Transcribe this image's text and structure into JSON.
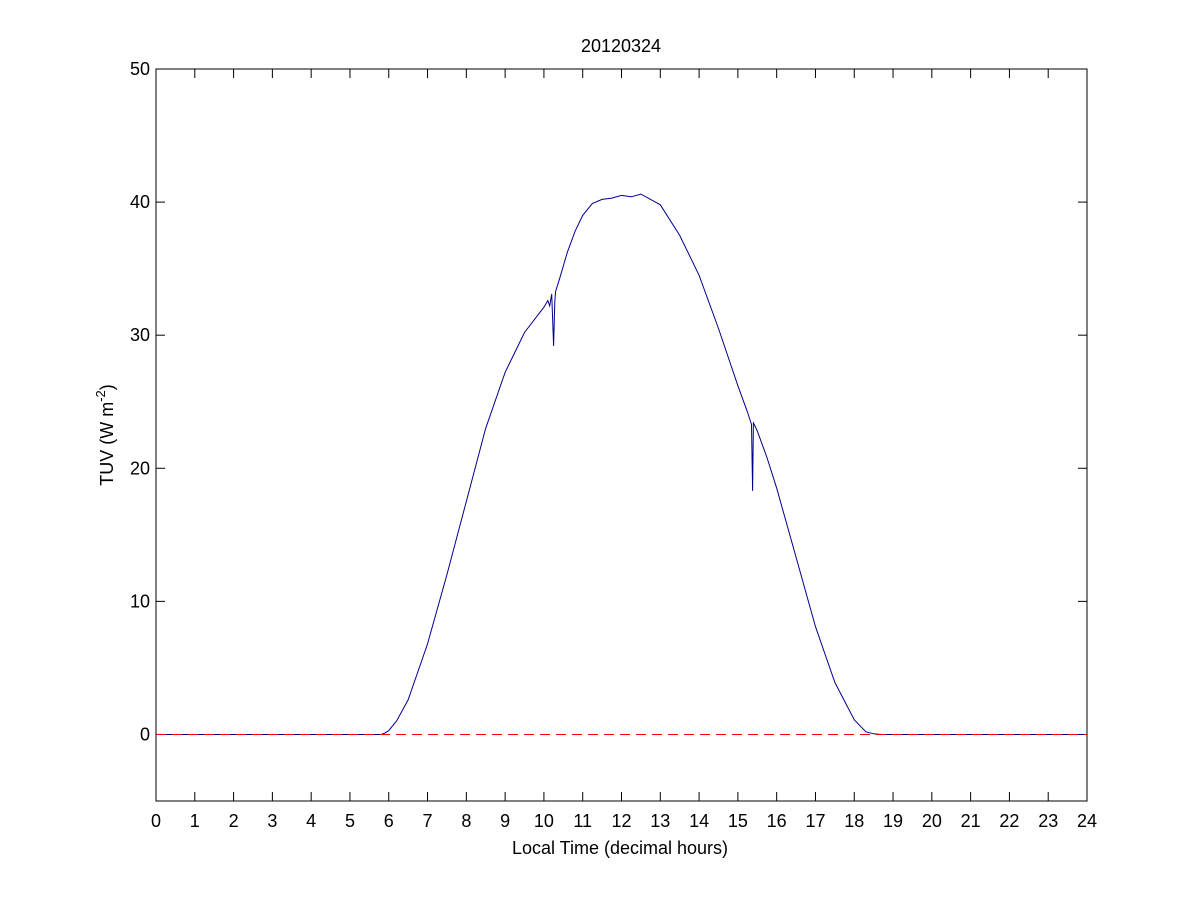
{
  "chart_data": {
    "type": "line",
    "title": "20120324",
    "xlabel": "Local Time (decimal hours)",
    "ylabel": {
      "main": "TUV (W m",
      "superscript": "-2",
      "close": ")"
    },
    "xlim": [
      0,
      24
    ],
    "ylim": [
      -5,
      50
    ],
    "xticks": [
      0,
      1,
      2,
      3,
      4,
      5,
      6,
      7,
      8,
      9,
      10,
      11,
      12,
      13,
      14,
      15,
      16,
      17,
      18,
      19,
      20,
      21,
      22,
      23,
      24
    ],
    "yticks": [
      0,
      10,
      20,
      30,
      40,
      50
    ],
    "grid": false,
    "legend": "none",
    "series": [
      {
        "color": "#00008b",
        "style": "solid",
        "x": [
          0,
          5.8,
          5.9,
          6.0,
          6.2,
          6.5,
          7.0,
          7.5,
          8.0,
          8.5,
          9.0,
          9.5,
          10.0,
          10.1,
          10.15,
          10.2,
          10.22,
          10.25,
          10.28,
          10.3,
          10.4,
          10.6,
          10.8,
          11.0,
          11.25,
          11.5,
          11.75,
          12.0,
          12.25,
          12.5,
          12.75,
          13.0,
          13.5,
          14.0,
          14.5,
          15.0,
          15.25,
          15.35,
          15.38,
          15.4,
          15.42,
          15.5,
          15.75,
          16.0,
          16.5,
          17.0,
          17.5,
          18.0,
          18.3,
          18.5,
          18.7,
          18.9,
          24
        ],
        "y": [
          0,
          0,
          0.1,
          0.3,
          1.0,
          2.6,
          6.8,
          12.0,
          17.5,
          23.0,
          27.2,
          30.2,
          32.1,
          32.6,
          32.2,
          33.1,
          31.5,
          29.2,
          32.5,
          33.3,
          34.2,
          36.2,
          37.8,
          39.0,
          39.9,
          40.2,
          40.3,
          40.5,
          40.4,
          40.6,
          40.2,
          39.8,
          37.5,
          34.5,
          30.5,
          26.2,
          24.2,
          23.3,
          18.3,
          23.4,
          23.3,
          22.8,
          20.8,
          18.5,
          13.3,
          8.1,
          3.9,
          1.1,
          0.2,
          0.05,
          0,
          0,
          0
        ]
      },
      {
        "color": "#ff0000",
        "style": "dashed",
        "x": [
          0,
          24
        ],
        "y": [
          0,
          0
        ]
      }
    ]
  }
}
